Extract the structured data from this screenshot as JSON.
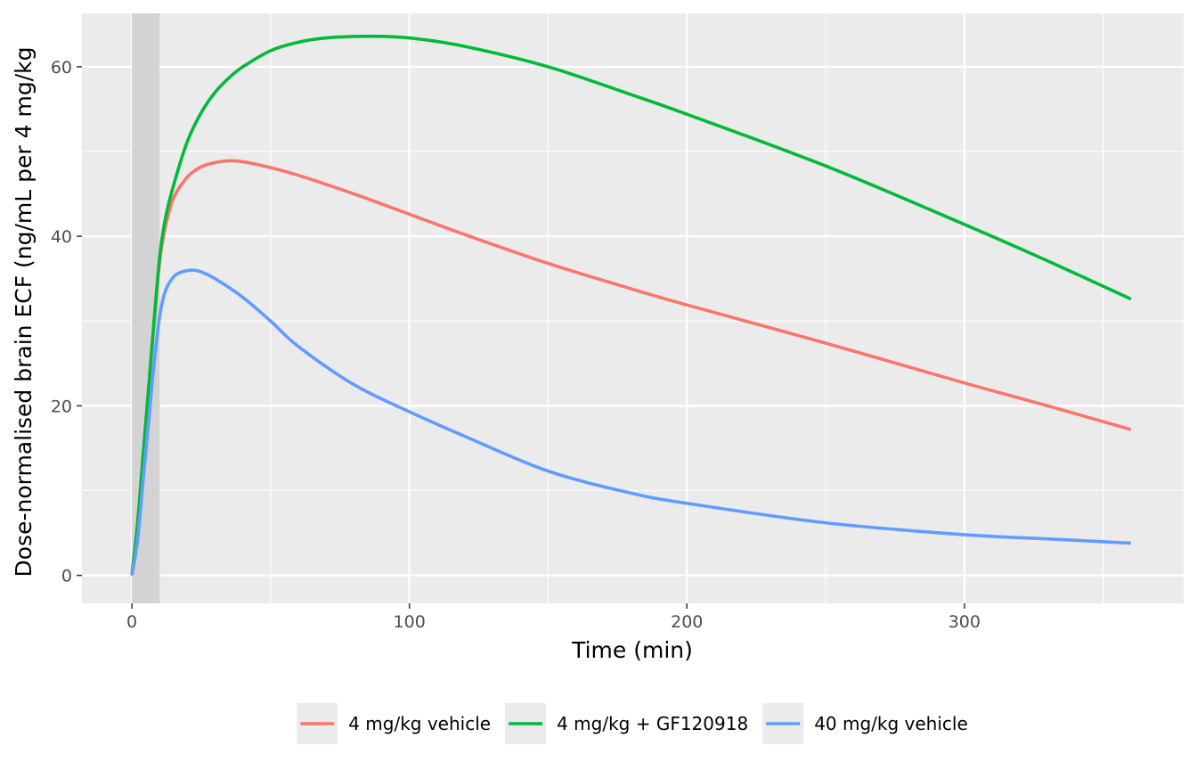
{
  "chart_data": {
    "type": "line",
    "title": "",
    "xlabel": "Time (min)",
    "ylabel": "Dose-normalised brain ECF (ng/mL per 4 mg/kg",
    "xlim": [
      -18,
      379
    ],
    "ylim": [
      -3.3,
      66.3
    ],
    "x_ticks": [
      0,
      100,
      200,
      300
    ],
    "y_ticks": [
      0,
      20,
      40,
      60
    ],
    "x_tick_labels": [
      "0",
      "100",
      "200",
      "300"
    ],
    "y_tick_labels": [
      "0",
      "20",
      "40",
      "60"
    ],
    "grid": true,
    "background": "#ebebeb",
    "shaded_interval": {
      "x": [
        0,
        10
      ],
      "color": "#d3d3d3"
    },
    "legend_position": "bottom",
    "series": [
      {
        "name": "4 mg/kg vehicle",
        "color": "#f8766d",
        "x": [
          0,
          2,
          4,
          6,
          8,
          10,
          12,
          15,
          20,
          25,
          30,
          35,
          40,
          50,
          60,
          80,
          100,
          120,
          150,
          180,
          200,
          250,
          300,
          330,
          360
        ],
        "y": [
          0,
          6,
          14,
          22,
          30,
          37,
          41,
          44.5,
          47,
          48.2,
          48.7,
          48.9,
          48.8,
          48.1,
          47.2,
          45,
          42.6,
          40.2,
          36.8,
          33.8,
          31.9,
          27.4,
          22.7,
          20,
          17.2
        ]
      },
      {
        "name": "4 mg/kg + GF120918",
        "color": "#00ba38",
        "x": [
          0,
          2,
          4,
          6,
          8,
          10,
          12,
          15,
          20,
          25,
          30,
          35,
          40,
          50,
          60,
          70,
          85,
          100,
          120,
          150,
          180,
          200,
          250,
          300,
          330,
          360
        ],
        "y": [
          0,
          6,
          14,
          22,
          30,
          37.5,
          42,
          46,
          51.2,
          54.6,
          57,
          58.7,
          60,
          61.9,
          62.9,
          63.4,
          63.6,
          63.4,
          62.4,
          60,
          56.7,
          54.4,
          48.3,
          41.4,
          37.1,
          32.6
        ]
      },
      {
        "name": "40 mg/kg vehicle",
        "color": "#619cff",
        "x": [
          0,
          2,
          4,
          6,
          8,
          10,
          12,
          15,
          18,
          22,
          25,
          30,
          40,
          50,
          60,
          80,
          100,
          120,
          150,
          180,
          200,
          250,
          300,
          330,
          360
        ],
        "y": [
          0,
          4,
          11,
          18,
          25,
          30.5,
          33.5,
          35.2,
          35.8,
          36,
          35.8,
          35,
          32.8,
          30,
          27,
          22.5,
          19.3,
          16.4,
          12.3,
          9.7,
          8.5,
          6.2,
          4.8,
          4.3,
          3.8
        ]
      }
    ]
  }
}
